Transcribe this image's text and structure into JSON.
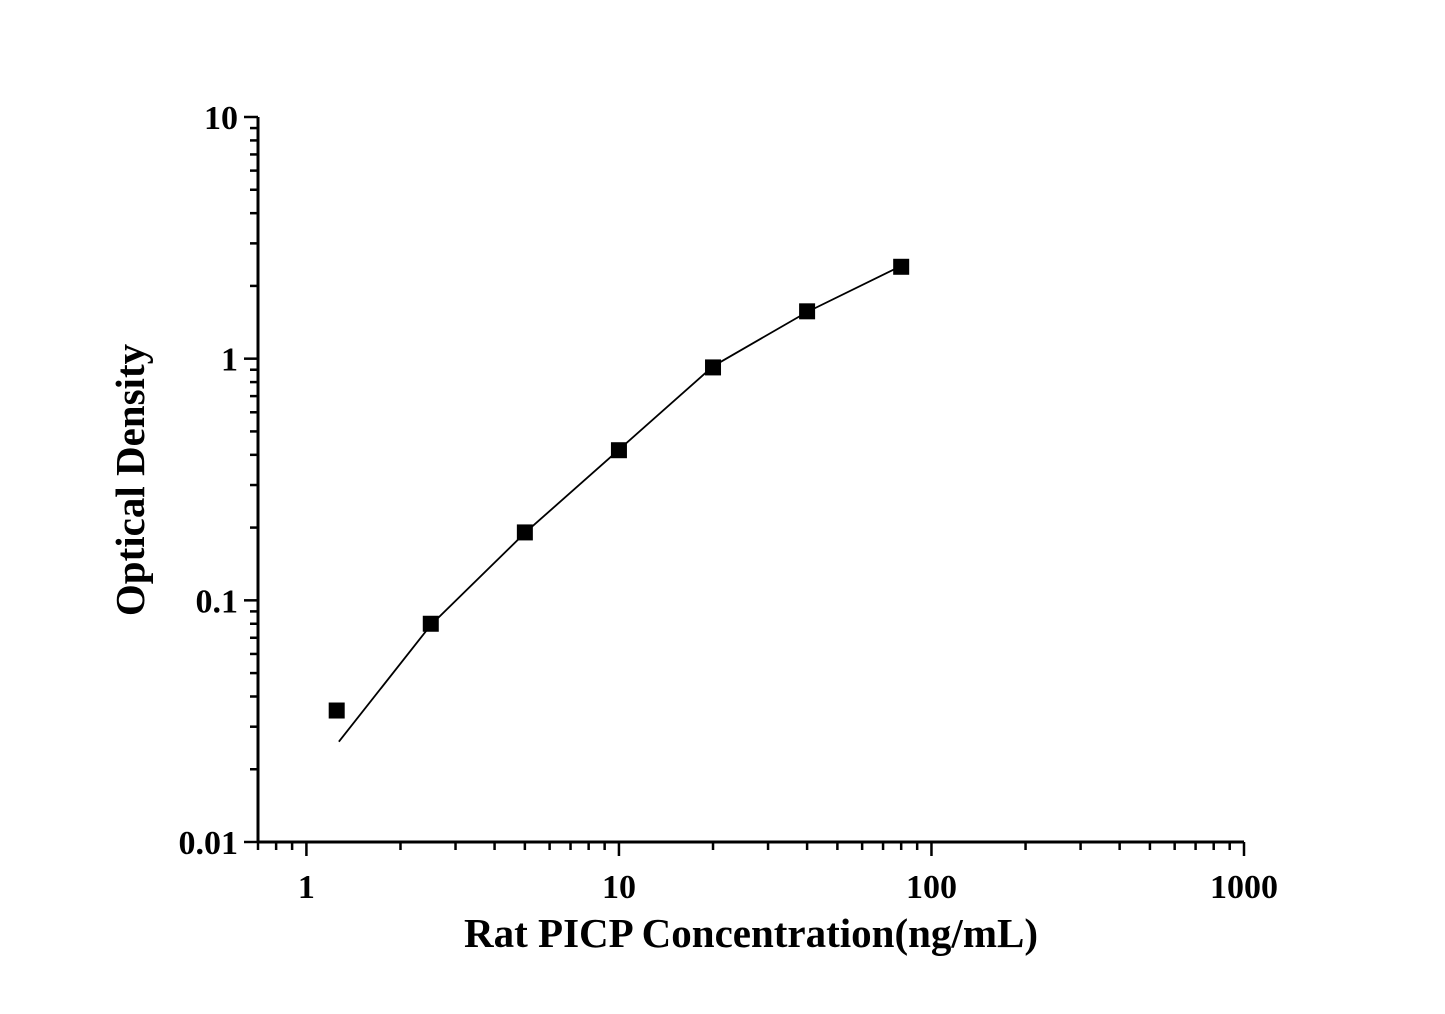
{
  "chart_data": {
    "type": "scatter",
    "title": "",
    "xlabel": "Rat PICP Concentration(ng/mL)",
    "ylabel": "Optical Density",
    "x_scale": "log",
    "y_scale": "log",
    "xlim": [
      0.7,
      1000
    ],
    "ylim": [
      0.01,
      10
    ],
    "x_ticks": [
      {
        "value": 1,
        "label": "1"
      },
      {
        "value": 10,
        "label": "10"
      },
      {
        "value": 100,
        "label": "100"
      },
      {
        "value": 1000,
        "label": "1000"
      }
    ],
    "y_ticks": [
      {
        "value": 0.01,
        "label": "0.01"
      },
      {
        "value": 0.1,
        "label": "0.1"
      },
      {
        "value": 1,
        "label": "1"
      },
      {
        "value": 10,
        "label": "10"
      }
    ],
    "grid": false,
    "marker_color": "#000000",
    "series": [
      {
        "kind": "points",
        "marker": "square",
        "x": [
          1.25,
          2.5,
          5,
          10,
          20,
          40,
          80
        ],
        "y": [
          0.035,
          0.08,
          0.191,
          0.418,
          0.92,
          1.57,
          2.4
        ]
      },
      {
        "kind": "fit-line",
        "x": [
          1.27,
          2.5,
          5,
          10,
          20,
          40,
          80
        ],
        "y": [
          0.026,
          0.079,
          0.19,
          0.42,
          0.93,
          1.56,
          2.42
        ]
      }
    ]
  }
}
